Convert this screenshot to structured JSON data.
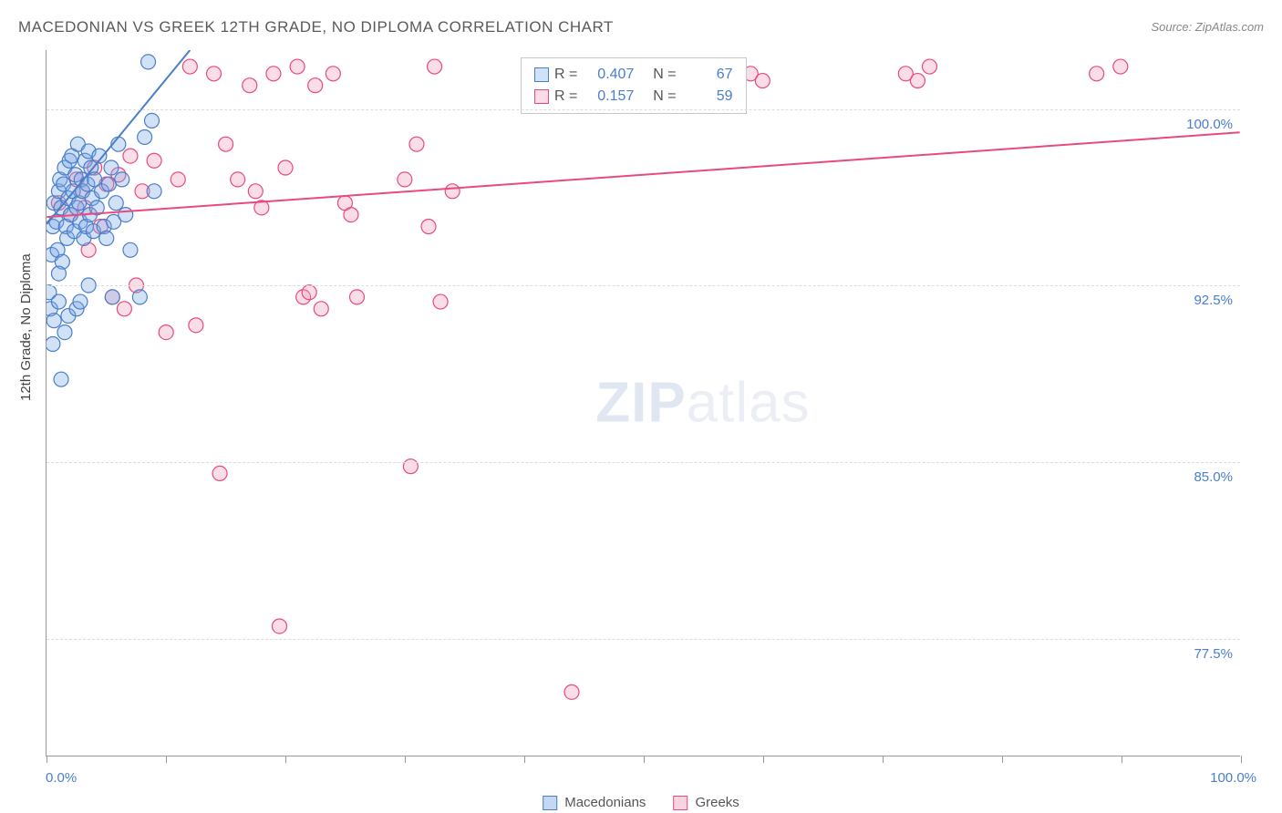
{
  "title": "MACEDONIAN VS GREEK 12TH GRADE, NO DIPLOMA CORRELATION CHART",
  "source": "Source: ZipAtlas.com",
  "ylabel": "12th Grade, No Diploma",
  "watermark_bold": "ZIP",
  "watermark_light": "atlas",
  "chart": {
    "type": "scatter",
    "xlim": [
      0,
      100
    ],
    "ylim": [
      72.5,
      102.5
    ],
    "xaxis_min_label": "0.0%",
    "xaxis_max_label": "100.0%",
    "ytick_labels": [
      "100.0%",
      "92.5%",
      "85.0%",
      "77.5%"
    ],
    "ytick_values": [
      100.0,
      92.5,
      85.0,
      77.5
    ],
    "xtick_count": 11,
    "grid_color": "#dcdcdc",
    "axis_color": "#999999",
    "background_color": "#ffffff",
    "marker_radius": 8,
    "marker_stroke_width": 1.2,
    "line_width": 2
  },
  "series": [
    {
      "name": "Macedonians",
      "fill": "rgba(122,168,228,0.35)",
      "stroke": "#4a7ec9",
      "r_label": "R =",
      "r_value": "0.407",
      "n_label": "N =",
      "n_value": "67",
      "trend": {
        "x1": 0,
        "y1": 95.1,
        "x2": 12,
        "y2": 102.5
      },
      "points": [
        [
          0.2,
          92.2
        ],
        [
          0.4,
          93.8
        ],
        [
          0.5,
          95.0
        ],
        [
          0.6,
          96.0
        ],
        [
          0.8,
          95.2
        ],
        [
          0.9,
          94.0
        ],
        [
          1.0,
          96.5
        ],
        [
          1.1,
          97.0
        ],
        [
          1.2,
          95.8
        ],
        [
          1.3,
          93.5
        ],
        [
          1.4,
          96.8
        ],
        [
          1.5,
          97.5
        ],
        [
          1.6,
          95.0
        ],
        [
          1.7,
          94.5
        ],
        [
          1.8,
          96.2
        ],
        [
          1.9,
          97.8
        ],
        [
          2.0,
          95.5
        ],
        [
          2.1,
          98.0
        ],
        [
          2.2,
          96.5
        ],
        [
          2.3,
          94.8
        ],
        [
          2.4,
          97.2
        ],
        [
          2.5,
          95.8
        ],
        [
          2.6,
          98.5
        ],
        [
          2.7,
          96.0
        ],
        [
          2.8,
          95.2
        ],
        [
          2.9,
          97.0
        ],
        [
          3.0,
          96.5
        ],
        [
          3.1,
          94.5
        ],
        [
          3.2,
          97.8
        ],
        [
          3.3,
          95.0
        ],
        [
          3.4,
          96.8
        ],
        [
          3.5,
          98.2
        ],
        [
          3.6,
          95.5
        ],
        [
          3.7,
          97.5
        ],
        [
          3.8,
          96.2
        ],
        [
          3.9,
          94.8
        ],
        [
          4.0,
          97.0
        ],
        [
          4.2,
          95.8
        ],
        [
          4.4,
          98.0
        ],
        [
          4.6,
          96.5
        ],
        [
          4.8,
          95.0
        ],
        [
          5.0,
          94.5
        ],
        [
          5.2,
          96.8
        ],
        [
          5.4,
          97.5
        ],
        [
          5.6,
          95.2
        ],
        [
          5.8,
          96.0
        ],
        [
          6.0,
          98.5
        ],
        [
          6.3,
          97.0
        ],
        [
          6.6,
          95.5
        ],
        [
          7.0,
          94.0
        ],
        [
          7.8,
          92.0
        ],
        [
          8.2,
          98.8
        ],
        [
          8.5,
          102.0
        ],
        [
          8.8,
          99.5
        ],
        [
          9.0,
          96.5
        ],
        [
          0.3,
          91.5
        ],
        [
          0.6,
          91.0
        ],
        [
          1.0,
          91.8
        ],
        [
          1.8,
          91.2
        ],
        [
          2.5,
          91.5
        ],
        [
          0.5,
          90.0
        ],
        [
          1.5,
          90.5
        ],
        [
          3.5,
          92.5
        ],
        [
          5.5,
          92.0
        ],
        [
          1.2,
          88.5
        ],
        [
          2.8,
          91.8
        ],
        [
          1.0,
          93.0
        ]
      ]
    },
    {
      "name": "Greeks",
      "fill": "rgba(242,158,183,0.35)",
      "stroke": "#e84a7d",
      "r_label": "R =",
      "r_value": "0.157",
      "n_label": "N =",
      "n_value": "59",
      "trend": {
        "x1": 0,
        "y1": 95.4,
        "x2": 100,
        "y2": 99.0
      },
      "points": [
        [
          1.0,
          96.0
        ],
        [
          2.0,
          95.5
        ],
        [
          2.5,
          97.0
        ],
        [
          3.0,
          96.5
        ],
        [
          3.5,
          94.0
        ],
        [
          4.0,
          97.5
        ],
        [
          4.5,
          95.0
        ],
        [
          5.0,
          96.8
        ],
        [
          5.5,
          92.0
        ],
        [
          6.0,
          97.2
        ],
        [
          6.5,
          91.5
        ],
        [
          7.0,
          98.0
        ],
        [
          7.5,
          92.5
        ],
        [
          8.0,
          96.5
        ],
        [
          9.0,
          97.8
        ],
        [
          10.0,
          90.5
        ],
        [
          11.0,
          97.0
        ],
        [
          12.0,
          101.8
        ],
        [
          12.5,
          90.8
        ],
        [
          14.0,
          101.5
        ],
        [
          14.5,
          84.5
        ],
        [
          15.0,
          98.5
        ],
        [
          16.0,
          97.0
        ],
        [
          17.0,
          101.0
        ],
        [
          17.5,
          96.5
        ],
        [
          18.0,
          95.8
        ],
        [
          19.0,
          101.5
        ],
        [
          19.5,
          78.0
        ],
        [
          20.0,
          97.5
        ],
        [
          21.0,
          101.8
        ],
        [
          21.5,
          92.0
        ],
        [
          22.0,
          92.2
        ],
        [
          22.5,
          101.0
        ],
        [
          23.0,
          91.5
        ],
        [
          24.0,
          101.5
        ],
        [
          25.0,
          96.0
        ],
        [
          25.5,
          95.5
        ],
        [
          26.0,
          92.0
        ],
        [
          30.0,
          97.0
        ],
        [
          30.5,
          84.8
        ],
        [
          31.0,
          98.5
        ],
        [
          32.0,
          95.0
        ],
        [
          32.5,
          101.8
        ],
        [
          33.0,
          91.8
        ],
        [
          34.0,
          96.5
        ],
        [
          44.0,
          75.2
        ],
        [
          50.0,
          101.0
        ],
        [
          52.0,
          101.5
        ],
        [
          53.0,
          101.2
        ],
        [
          54.0,
          101.8
        ],
        [
          58.0,
          101.0
        ],
        [
          59.0,
          101.5
        ],
        [
          60.0,
          101.2
        ],
        [
          72.0,
          101.5
        ],
        [
          73.0,
          101.2
        ],
        [
          74.0,
          101.8
        ],
        [
          88.0,
          101.5
        ],
        [
          90.0,
          101.8
        ],
        [
          3.2,
          95.8
        ]
      ]
    }
  ],
  "legend_bottom": [
    {
      "label": "Macedonians",
      "fill": "rgba(122,168,228,0.45)",
      "stroke": "#4a7ec9"
    },
    {
      "label": "Greeks",
      "fill": "rgba(242,158,183,0.45)",
      "stroke": "#e84a7d"
    }
  ]
}
